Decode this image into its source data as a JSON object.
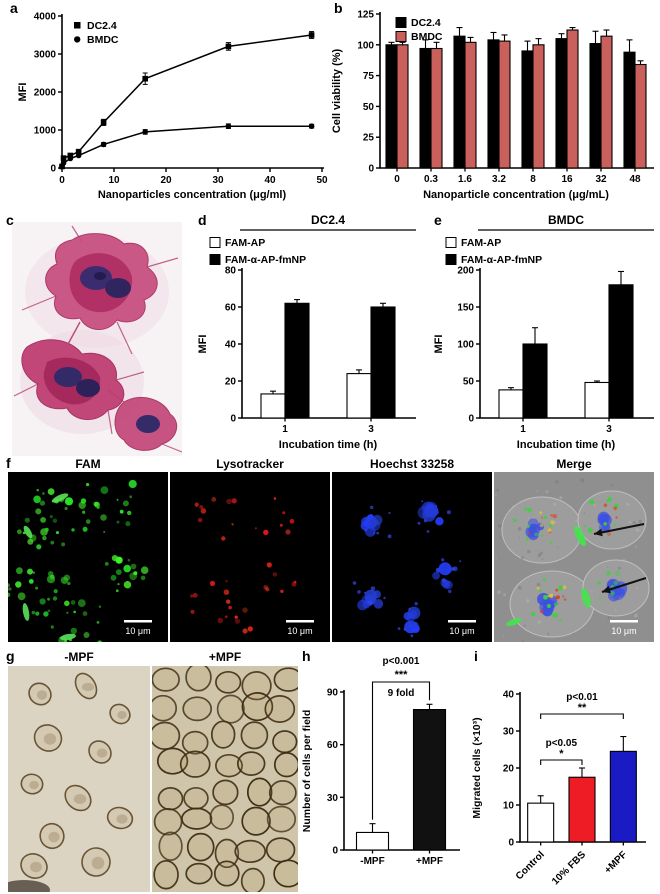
{
  "panel_labels": {
    "a": "a",
    "b": "b",
    "c": "c",
    "d": "d",
    "e": "e",
    "f": "f",
    "g": "g",
    "h": "h",
    "i": "i"
  },
  "panel_f": {
    "columns": [
      {
        "label": "FAM",
        "scale_bar": "10 μm"
      },
      {
        "label": "Lysotracker",
        "scale_bar": "10 μm"
      },
      {
        "label": "Hoechst 33258",
        "scale_bar": "10 μm"
      },
      {
        "label": "Merge",
        "scale_bar": "10 μm"
      }
    ]
  },
  "panel_g": {
    "left_label": "-MPF",
    "right_label": "+MPF"
  },
  "chart_data": [
    {
      "id": "a",
      "type": "line",
      "xlabel": "Nanoparticles concentration (μg/ml)",
      "ylabel": "MFI",
      "xlim": [
        0,
        50
      ],
      "ylim": [
        0,
        4000
      ],
      "xticks": [
        0,
        10,
        20,
        30,
        40,
        50
      ],
      "yticks": [
        0,
        1000,
        2000,
        3000,
        4000
      ],
      "x": [
        0,
        0.3,
        1.6,
        3.2,
        8,
        16,
        32,
        48
      ],
      "series": [
        {
          "name": "DC2.4",
          "marker": "square",
          "values": [
            40,
            260,
            330,
            430,
            1200,
            2350,
            3200,
            3500
          ],
          "errors": [
            0,
            0,
            0,
            0,
            80,
            150,
            100,
            90
          ]
        },
        {
          "name": "BMDC",
          "marker": "circle",
          "values": [
            40,
            130,
            250,
            330,
            620,
            950,
            1100,
            1100
          ],
          "errors": [
            0,
            0,
            0,
            0,
            50,
            60,
            60,
            50
          ]
        }
      ],
      "legend_position": "top-left"
    },
    {
      "id": "b",
      "type": "bar",
      "xlabel": "Nanoparticle concentration (μg/mL)",
      "ylabel": "Cell viability (%)",
      "ylim": [
        0,
        125
      ],
      "yticks": [
        0,
        25,
        50,
        75,
        100,
        125
      ],
      "categories": [
        "0",
        "0.3",
        "1.6",
        "3.2",
        "8",
        "16",
        "32",
        "48"
      ],
      "series": [
        {
          "name": "DC2.4",
          "color": "#000000",
          "values": [
            100,
            97,
            107,
            104,
            95,
            105,
            101,
            94
          ],
          "errors": [
            2,
            7,
            7,
            6,
            8,
            4,
            10,
            10
          ]
        },
        {
          "name": "BMDC",
          "color": "#c9605c",
          "values": [
            100,
            97,
            102,
            103,
            100,
            112,
            107,
            84
          ],
          "errors": [
            2,
            5,
            4,
            5,
            5,
            2,
            5,
            3
          ]
        }
      ],
      "legend_position": "top-left"
    },
    {
      "id": "d",
      "type": "bar",
      "title": "DC2.4",
      "xlabel": "Incubation time (h)",
      "ylabel": "MFI",
      "ylim": [
        0,
        80
      ],
      "yticks": [
        0,
        20,
        40,
        60,
        80
      ],
      "categories": [
        "1",
        "3"
      ],
      "series": [
        {
          "name": "FAM-AP",
          "color": "#ffffff",
          "values": [
            13,
            24
          ],
          "errors": [
            1.5,
            2
          ]
        },
        {
          "name": "FAM-α-AP-fmNP",
          "color": "#000000",
          "values": [
            62,
            60
          ],
          "errors": [
            2,
            2
          ]
        }
      ]
    },
    {
      "id": "e",
      "type": "bar",
      "title": "BMDC",
      "xlabel": "Incubation time (h)",
      "ylabel": "MFI",
      "ylim": [
        0,
        200
      ],
      "yticks": [
        0,
        50,
        100,
        150,
        200
      ],
      "categories": [
        "1",
        "3"
      ],
      "series": [
        {
          "name": "FAM-AP",
          "color": "#ffffff",
          "values": [
            38,
            48
          ],
          "errors": [
            3,
            2
          ]
        },
        {
          "name": "FAM-α-AP-fmNP",
          "color": "#000000",
          "values": [
            100,
            180
          ],
          "errors": [
            22,
            18
          ]
        }
      ]
    },
    {
      "id": "h",
      "type": "bar",
      "ylabel": "Number of cells per field",
      "ylim": [
        0,
        90
      ],
      "yticks": [
        0,
        30,
        60,
        90
      ],
      "categories": [
        "-MPF",
        "+MPF"
      ],
      "values": [
        10,
        80
      ],
      "errors": [
        5,
        3
      ],
      "colors": [
        "#ffffff",
        "#111111"
      ],
      "annotations": {
        "p": "p<0.001",
        "stars": "***",
        "note": "9 fold"
      }
    },
    {
      "id": "i",
      "type": "bar",
      "ylabel": "Migrated cells (×10³)",
      "ylim": [
        0,
        40
      ],
      "yticks": [
        0,
        10,
        20,
        30,
        40
      ],
      "categories": [
        "Control",
        "10% FBS",
        "+MPF"
      ],
      "values": [
        10.5,
        17.5,
        24.5
      ],
      "errors": [
        2,
        2.5,
        4
      ],
      "colors": [
        "#ffffff",
        "#ee1c25",
        "#1b1bc4"
      ],
      "comparisons": [
        {
          "label": "p<0.05",
          "stars": "*"
        },
        {
          "label": "p<0.01",
          "stars": "**"
        }
      ]
    }
  ]
}
